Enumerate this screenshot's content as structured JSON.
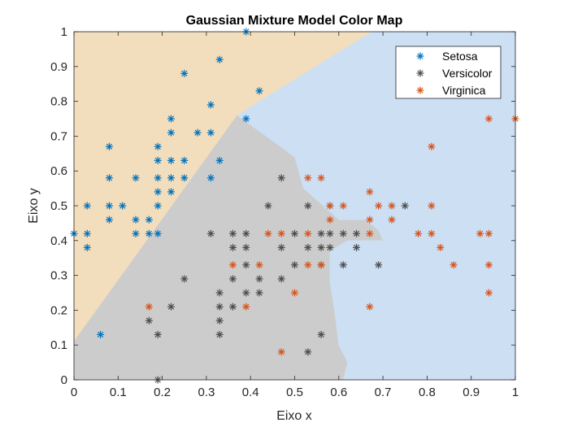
{
  "chart_data": {
    "type": "scatter",
    "title": "Gaussian Mixture Model Color Map",
    "xlabel": "Eixo x",
    "ylabel": "Eixo y",
    "xlim": [
      0,
      1
    ],
    "ylim": [
      0,
      1
    ],
    "xticks": [
      "0",
      "0.1",
      "0.2",
      "0.3",
      "0.4",
      "0.5",
      "0.6",
      "0.7",
      "0.8",
      "0.9",
      "1"
    ],
    "yticks": [
      "0",
      "0.1",
      "0.2",
      "0.3",
      "0.4",
      "0.5",
      "0.6",
      "0.7",
      "0.8",
      "0.9",
      "1"
    ],
    "grid": false,
    "legend_position": "top-right",
    "background_regions": [
      {
        "name": "setosa-region",
        "color": "#f2debd",
        "polygon": [
          [
            0,
            0.11
          ],
          [
            0,
            1
          ],
          [
            0.675,
            1
          ],
          [
            0.37,
            0.76
          ]
        ]
      },
      {
        "name": "versicolor-region",
        "color": "#cccccc",
        "polygon": [
          [
            0,
            0
          ],
          [
            0.61,
            0
          ],
          [
            0.62,
            0.05
          ],
          [
            0.6,
            0.1
          ],
          [
            0.59,
            0.2
          ],
          [
            0.58,
            0.28
          ],
          [
            0.58,
            0.37
          ],
          [
            0.62,
            0.4
          ],
          [
            0.7,
            0.4
          ],
          [
            0.69,
            0.43
          ],
          [
            0.66,
            0.46
          ],
          [
            0.6,
            0.46
          ],
          [
            0.52,
            0.55
          ],
          [
            0.5,
            0.64
          ],
          [
            0.37,
            0.76
          ],
          [
            0,
            0.11
          ]
        ]
      },
      {
        "name": "virginica-region",
        "color": "#ccdff3",
        "polygon": [
          [
            0.61,
            0
          ],
          [
            1,
            0
          ],
          [
            1,
            1
          ],
          [
            0.675,
            1
          ],
          [
            0.37,
            0.76
          ],
          [
            0.5,
            0.64
          ],
          [
            0.52,
            0.55
          ],
          [
            0.6,
            0.46
          ],
          [
            0.66,
            0.46
          ],
          [
            0.69,
            0.43
          ],
          [
            0.7,
            0.4
          ],
          [
            0.62,
            0.4
          ],
          [
            0.58,
            0.37
          ],
          [
            0.58,
            0.28
          ],
          [
            0.59,
            0.2
          ],
          [
            0.6,
            0.1
          ],
          [
            0.62,
            0.05
          ]
        ]
      }
    ],
    "series": [
      {
        "name": "Setosa",
        "color": "#0072bd",
        "points": [
          [
            0.39,
            1.0
          ],
          [
            0.33,
            0.92
          ],
          [
            0.25,
            0.88
          ],
          [
            0.42,
            0.83
          ],
          [
            0.31,
            0.79
          ],
          [
            0.22,
            0.75
          ],
          [
            0.39,
            0.75
          ],
          [
            0.22,
            0.71
          ],
          [
            0.28,
            0.71
          ],
          [
            0.31,
            0.71
          ],
          [
            0.08,
            0.67
          ],
          [
            0.19,
            0.67
          ],
          [
            0.19,
            0.63
          ],
          [
            0.22,
            0.63
          ],
          [
            0.25,
            0.63
          ],
          [
            0.33,
            0.63
          ],
          [
            0.08,
            0.58
          ],
          [
            0.14,
            0.58
          ],
          [
            0.19,
            0.58
          ],
          [
            0.22,
            0.58
          ],
          [
            0.25,
            0.58
          ],
          [
            0.31,
            0.58
          ],
          [
            0.19,
            0.54
          ],
          [
            0.22,
            0.54
          ],
          [
            0.03,
            0.5
          ],
          [
            0.08,
            0.5
          ],
          [
            0.11,
            0.5
          ],
          [
            0.19,
            0.5
          ],
          [
            0.08,
            0.46
          ],
          [
            0.14,
            0.46
          ],
          [
            0.17,
            0.46
          ],
          [
            0.0,
            0.42
          ],
          [
            0.03,
            0.42
          ],
          [
            0.14,
            0.42
          ],
          [
            0.17,
            0.42
          ],
          [
            0.19,
            0.42
          ],
          [
            0.03,
            0.38
          ],
          [
            0.06,
            0.13
          ]
        ]
      },
      {
        "name": "Versicolor",
        "color": "#4d4d4d",
        "points": [
          [
            0.47,
            0.58
          ],
          [
            0.44,
            0.5
          ],
          [
            0.53,
            0.5
          ],
          [
            0.58,
            0.5
          ],
          [
            0.75,
            0.5
          ],
          [
            0.31,
            0.42
          ],
          [
            0.36,
            0.42
          ],
          [
            0.39,
            0.42
          ],
          [
            0.5,
            0.42
          ],
          [
            0.56,
            0.42
          ],
          [
            0.58,
            0.42
          ],
          [
            0.61,
            0.42
          ],
          [
            0.64,
            0.42
          ],
          [
            0.36,
            0.38
          ],
          [
            0.39,
            0.38
          ],
          [
            0.47,
            0.38
          ],
          [
            0.53,
            0.38
          ],
          [
            0.56,
            0.38
          ],
          [
            0.58,
            0.38
          ],
          [
            0.64,
            0.38
          ],
          [
            0.39,
            0.33
          ],
          [
            0.5,
            0.33
          ],
          [
            0.56,
            0.33
          ],
          [
            0.61,
            0.33
          ],
          [
            0.69,
            0.33
          ],
          [
            0.25,
            0.29
          ],
          [
            0.36,
            0.29
          ],
          [
            0.42,
            0.29
          ],
          [
            0.47,
            0.29
          ],
          [
            0.33,
            0.25
          ],
          [
            0.39,
            0.25
          ],
          [
            0.42,
            0.25
          ],
          [
            0.22,
            0.21
          ],
          [
            0.33,
            0.21
          ],
          [
            0.36,
            0.21
          ],
          [
            0.17,
            0.17
          ],
          [
            0.33,
            0.17
          ],
          [
            0.19,
            0.13
          ],
          [
            0.33,
            0.13
          ],
          [
            0.56,
            0.13
          ],
          [
            0.53,
            0.08
          ],
          [
            0.19,
            0.0
          ]
        ]
      },
      {
        "name": "Virginica",
        "color": "#d95319",
        "points": [
          [
            0.94,
            0.75
          ],
          [
            1.0,
            0.75
          ],
          [
            0.81,
            0.67
          ],
          [
            0.53,
            0.58
          ],
          [
            0.56,
            0.58
          ],
          [
            0.67,
            0.54
          ],
          [
            0.58,
            0.5
          ],
          [
            0.61,
            0.5
          ],
          [
            0.69,
            0.5
          ],
          [
            0.72,
            0.5
          ],
          [
            0.81,
            0.5
          ],
          [
            0.58,
            0.46
          ],
          [
            0.67,
            0.46
          ],
          [
            0.72,
            0.46
          ],
          [
            0.44,
            0.42
          ],
          [
            0.47,
            0.42
          ],
          [
            0.53,
            0.42
          ],
          [
            0.67,
            0.42
          ],
          [
            0.78,
            0.42
          ],
          [
            0.81,
            0.42
          ],
          [
            0.92,
            0.42
          ],
          [
            0.94,
            0.42
          ],
          [
            0.83,
            0.38
          ],
          [
            0.36,
            0.33
          ],
          [
            0.42,
            0.33
          ],
          [
            0.53,
            0.33
          ],
          [
            0.56,
            0.33
          ],
          [
            0.86,
            0.33
          ],
          [
            0.94,
            0.33
          ],
          [
            0.5,
            0.25
          ],
          [
            0.94,
            0.25
          ],
          [
            0.17,
            0.21
          ],
          [
            0.39,
            0.21
          ],
          [
            0.67,
            0.21
          ],
          [
            0.47,
            0.08
          ]
        ]
      }
    ]
  }
}
